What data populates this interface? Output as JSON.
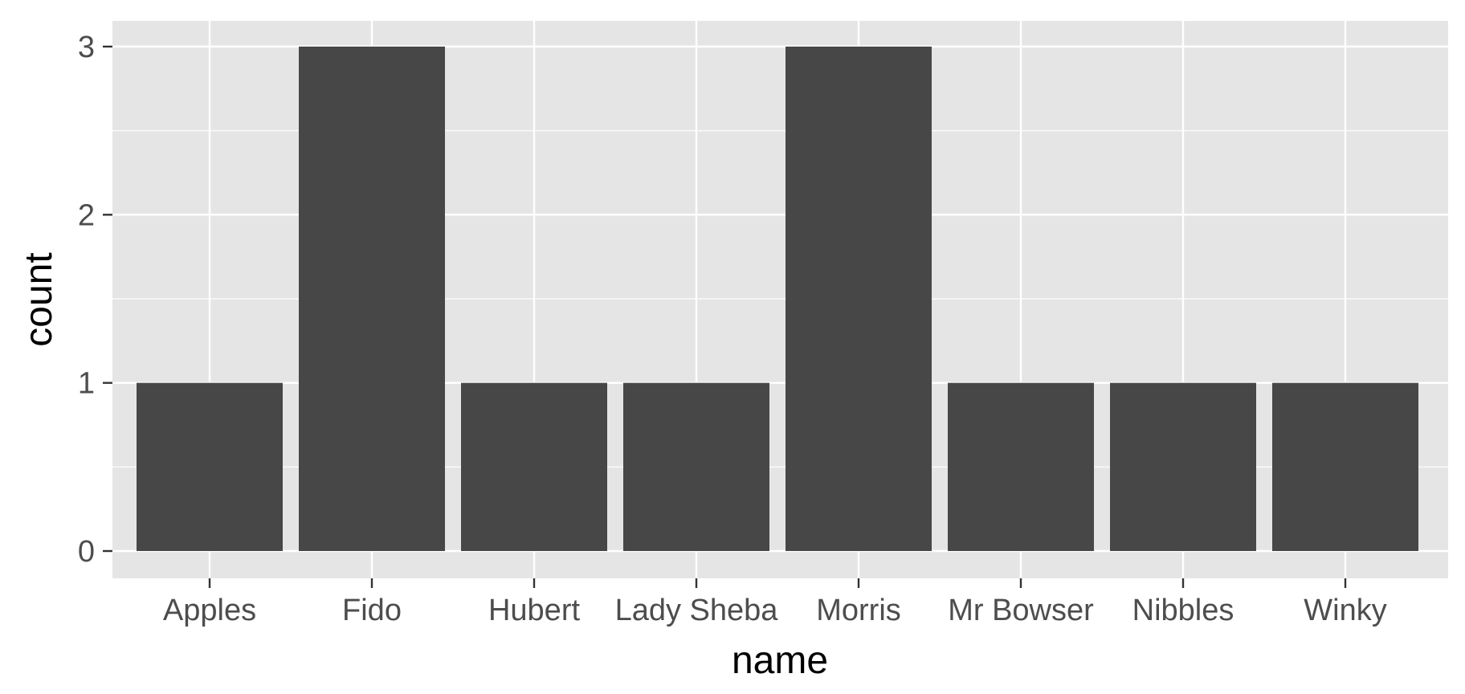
{
  "chart_data": {
    "type": "bar",
    "title": "",
    "xlabel": "name",
    "ylabel": "count",
    "categories": [
      "Apples",
      "Fido",
      "Hubert",
      "Lady Sheba",
      "Morris",
      "Mr Bowser",
      "Nibbles",
      "Winky"
    ],
    "values": [
      1,
      3,
      1,
      1,
      3,
      1,
      1,
      1
    ],
    "ylim": [
      0,
      3
    ],
    "yticks": [
      0,
      1,
      2,
      3
    ],
    "grid": true,
    "legend": "none"
  },
  "colors": {
    "panel_background": "#e5e5e5",
    "grid": "#ffffff",
    "bar_fill": "#474747",
    "tick_text": "#4d4d4d",
    "tick_mark": "#333333",
    "axis_title": "#000000"
  }
}
